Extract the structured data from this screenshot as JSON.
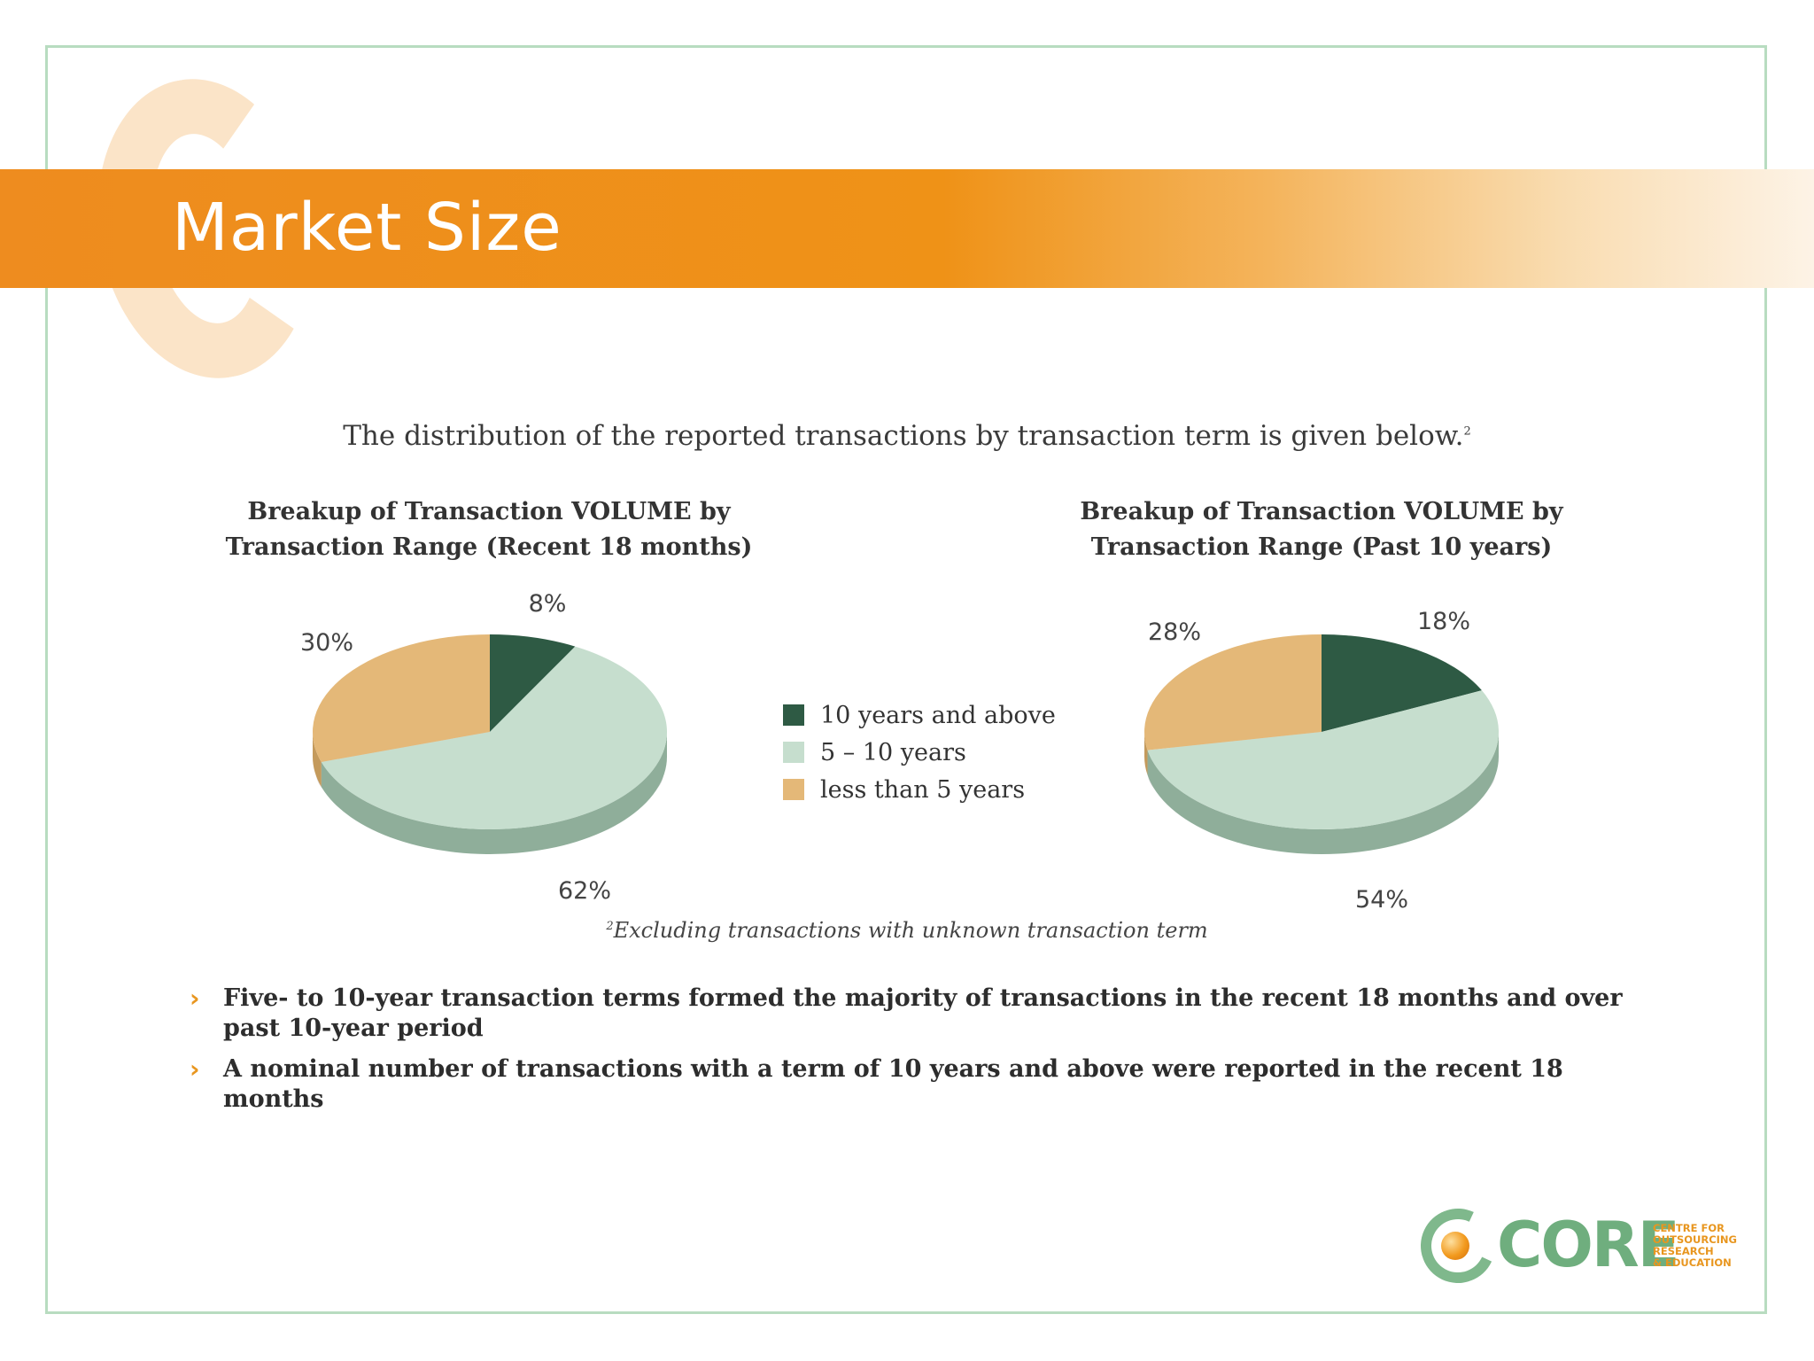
{
  "header": {
    "title": "Market Size"
  },
  "intro": {
    "text": "The distribution of the reported transactions by transaction term is given below.",
    "footnote_mark": "2"
  },
  "colors": {
    "ten_plus": "#2e5a44",
    "five_to_ten": "#c6dece",
    "less_than_five": "#e4b878",
    "banner": "#ef9217",
    "bullet_chevron": "#e8961f"
  },
  "chart_data": [
    {
      "type": "pie",
      "title": "Breakup of Transaction VOLUME by Transaction Range (Recent 18 months)",
      "title_lines": [
        "Breakup of Transaction VOLUME by",
        "Transaction Range (Recent 18 months)"
      ],
      "slices": [
        {
          "label": "10 years and above",
          "value": 8,
          "label_text": "8%"
        },
        {
          "label": "5 – 10 years",
          "value": 62,
          "label_text": "62%"
        },
        {
          "label": "less than 5 years",
          "value": 30,
          "label_text": "30%"
        }
      ]
    },
    {
      "type": "pie",
      "title": "Breakup of Transaction VOLUME by Transaction Range (Past 10 years)",
      "title_lines": [
        "Breakup of Transaction VOLUME by",
        "Transaction Range (Past 10 years)"
      ],
      "slices": [
        {
          "label": "10 years and above",
          "value": 18,
          "label_text": "18%"
        },
        {
          "label": "5 – 10 years",
          "value": 54,
          "label_text": "54%"
        },
        {
          "label": "less than 5 years",
          "value": 28,
          "label_text": "28%"
        }
      ]
    }
  ],
  "legend": {
    "items": [
      {
        "label": "10 years and above",
        "color_key": "ten_plus"
      },
      {
        "label": "5 – 10 years",
        "color_key": "five_to_ten"
      },
      {
        "label": "less than 5 years",
        "color_key": "less_than_five"
      }
    ]
  },
  "footnote": {
    "mark": "2",
    "text": "Excluding transactions with unknown transaction term"
  },
  "bullets": [
    {
      "chevron": "›",
      "text": "Five- to 10-year transaction terms formed the majority of transactions in the recent 18 months and over past 10-year period"
    },
    {
      "chevron": "›",
      "text": "A nominal number of transactions with a term of 10 years and above were reported in the recent 18 months"
    }
  ],
  "logo": {
    "word": "CORE",
    "subtitle_lines": [
      "CENTRE FOR",
      "OUTSOURCING",
      "RESEARCH",
      "& EDUCATION"
    ]
  }
}
